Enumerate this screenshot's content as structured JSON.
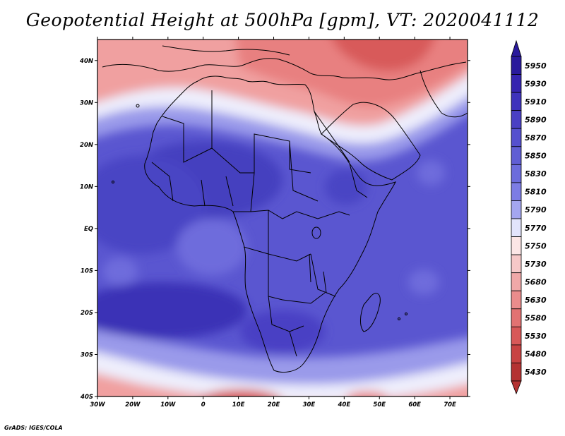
{
  "title": "Geopotential Height at 500hPa [gpm], VT: 2020041112",
  "credit": "GrADS: IGES/COLA",
  "map": {
    "lon_range": [
      -30,
      75
    ],
    "lat_range": [
      -40,
      45
    ],
    "lon_ticks": [
      "30W",
      "20W",
      "10W",
      "0",
      "10E",
      "20E",
      "30E",
      "40E",
      "50E",
      "60E",
      "70E"
    ],
    "lat_ticks": [
      "40N",
      "30N",
      "20N",
      "10N",
      "EQ",
      "10S",
      "20S",
      "30S",
      "40S"
    ]
  },
  "colorbar": {
    "levels": [
      "5950",
      "5930",
      "5910",
      "5890",
      "5870",
      "5850",
      "5830",
      "5810",
      "5790",
      "5770",
      "5750",
      "5730",
      "5680",
      "5630",
      "5580",
      "5530",
      "5480",
      "5430"
    ],
    "colors": [
      "#2a1a9c",
      "#3624b0",
      "#3e32bc",
      "#4a40c4",
      "#5550ce",
      "#605ed4",
      "#6c6cdc",
      "#7c7ce4",
      "#a4a6f0",
      "#e2e4fc",
      "#fce6e6",
      "#f6c8c8",
      "#f0a8a8",
      "#ea8c8c",
      "#e27272",
      "#d85858",
      "#c84242",
      "#b43232"
    ]
  }
}
